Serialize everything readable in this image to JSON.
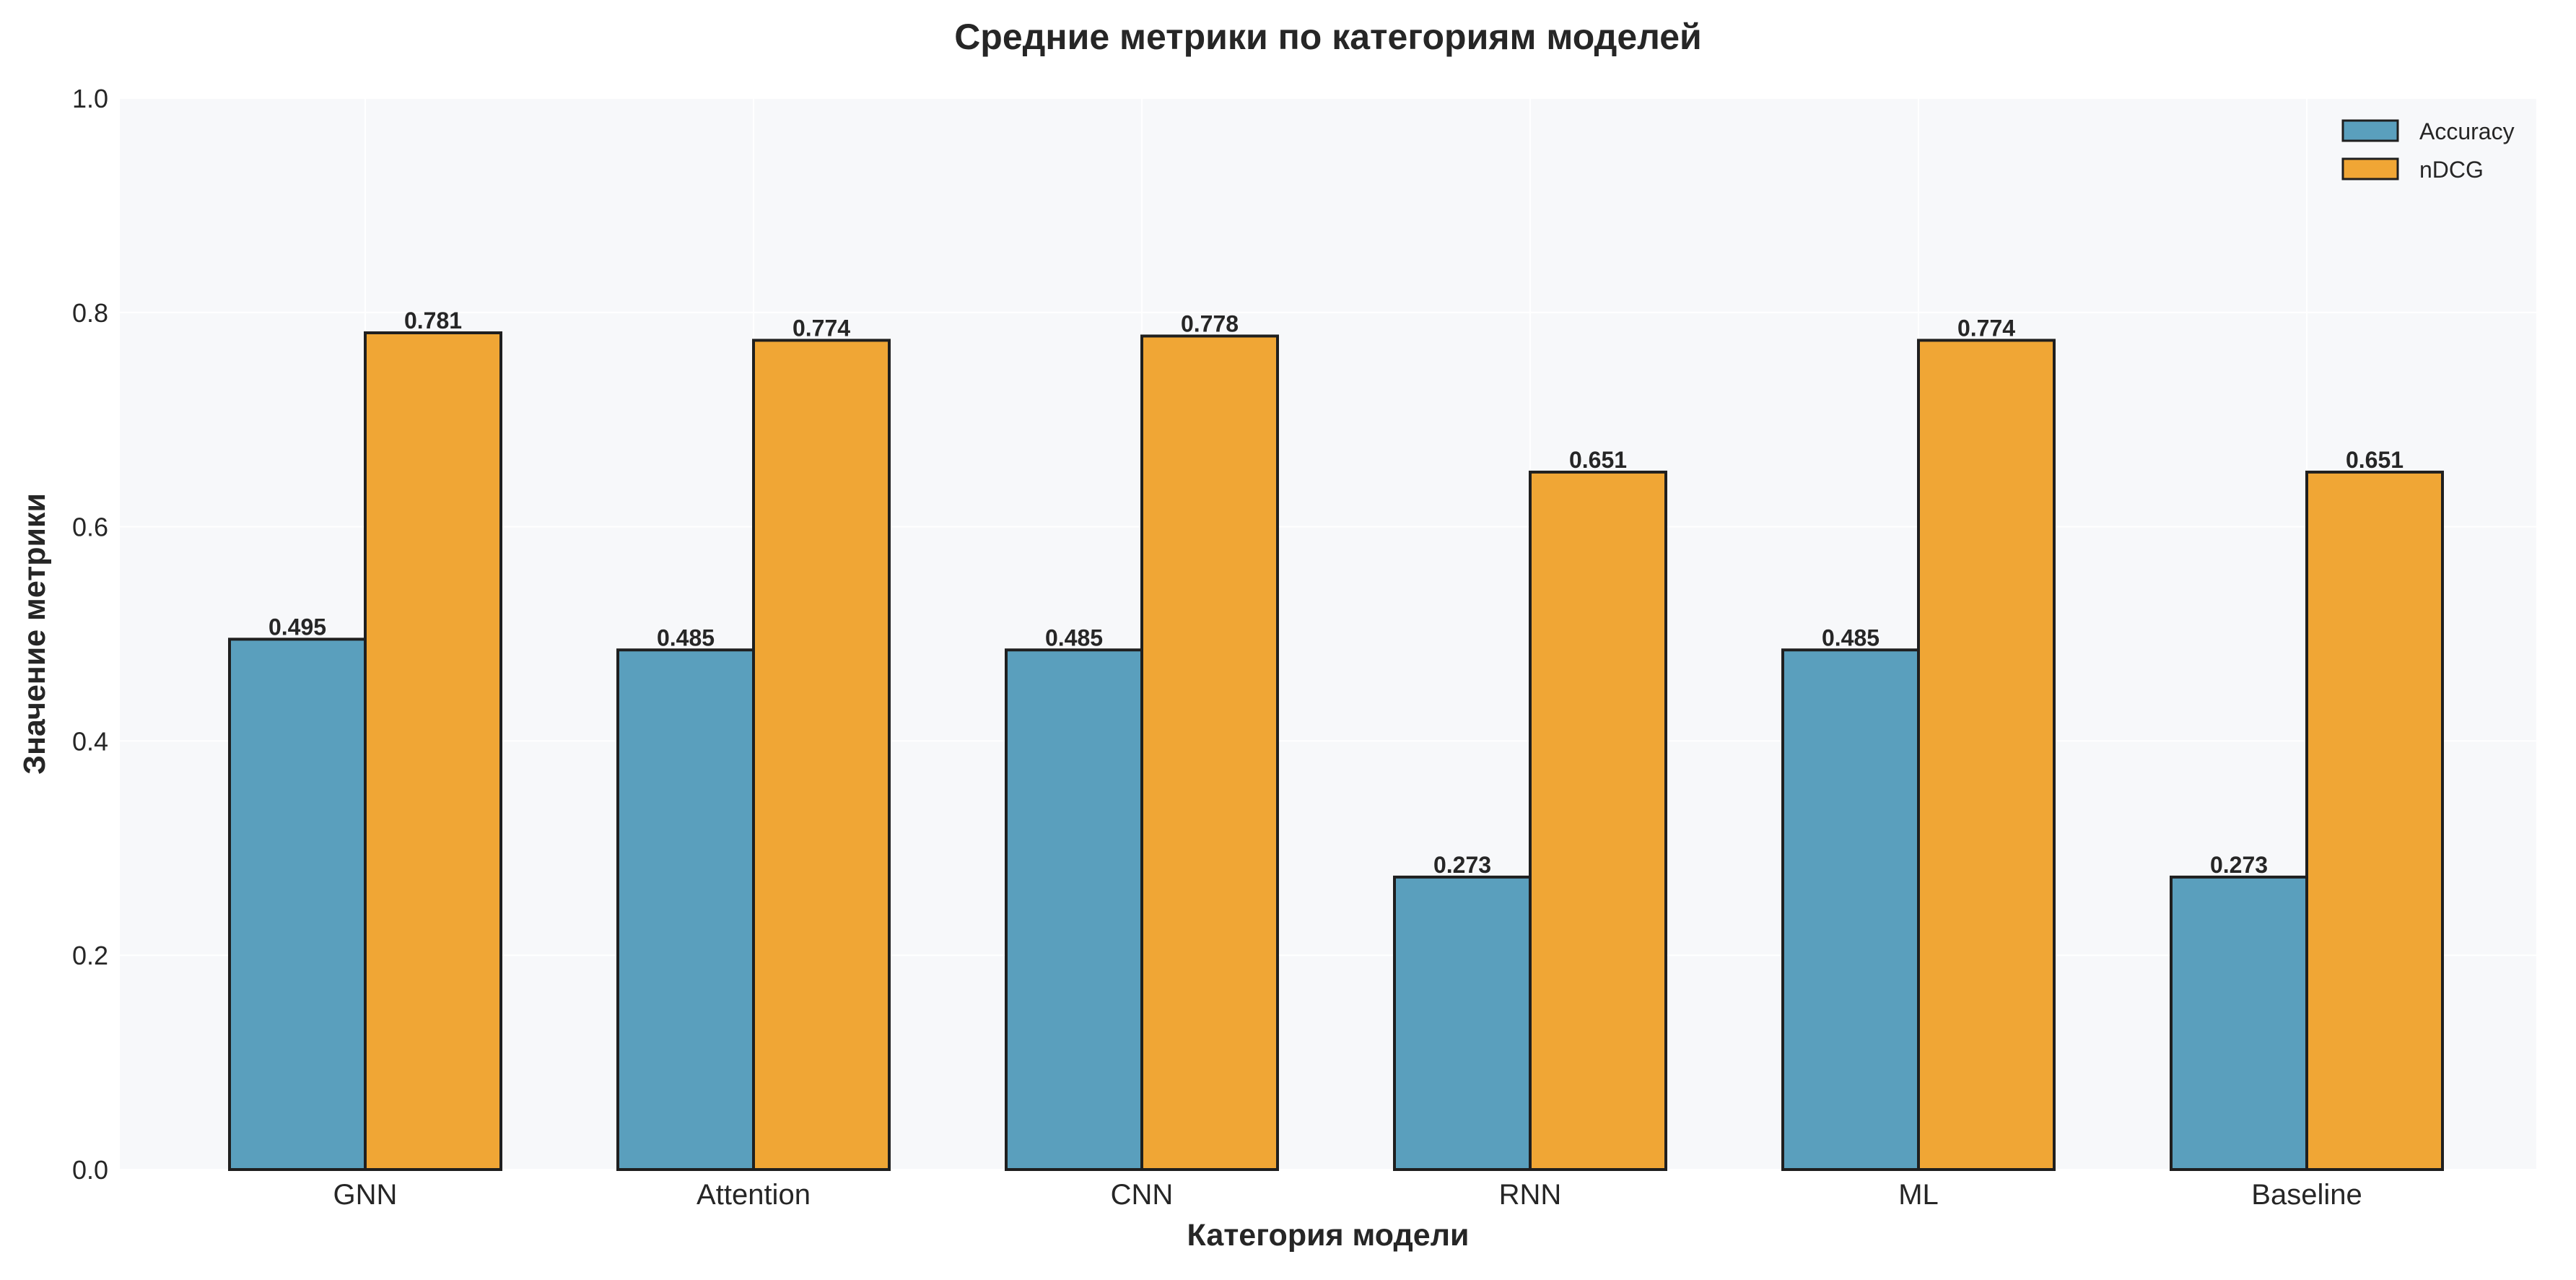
{
  "chart_data": {
    "type": "bar",
    "title": "Средние метрики по категориям моделей",
    "xlabel": "Категория модели",
    "ylabel": "Значение метрики",
    "ylim": [
      0,
      1.0
    ],
    "yticks": [
      "0.0",
      "0.2",
      "0.4",
      "0.6",
      "0.8",
      "1.0"
    ],
    "categories": [
      "GNN",
      "Attention",
      "CNN",
      "RNN",
      "ML",
      "Baseline"
    ],
    "series": [
      {
        "name": "Accuracy",
        "color": "#5a9fbd",
        "values": [
          0.495,
          0.485,
          0.485,
          0.273,
          0.485,
          0.273
        ],
        "labels": [
          "0.495",
          "0.485",
          "0.485",
          "0.273",
          "0.485",
          "0.273"
        ]
      },
      {
        "name": "nDCG",
        "color": "#f0a635",
        "values": [
          0.781,
          0.774,
          0.778,
          0.651,
          0.774,
          0.651
        ],
        "labels": [
          "0.781",
          "0.774",
          "0.778",
          "0.651",
          "0.774",
          "0.651"
        ]
      }
    ],
    "grid": true,
    "legend_position": "top-right"
  }
}
